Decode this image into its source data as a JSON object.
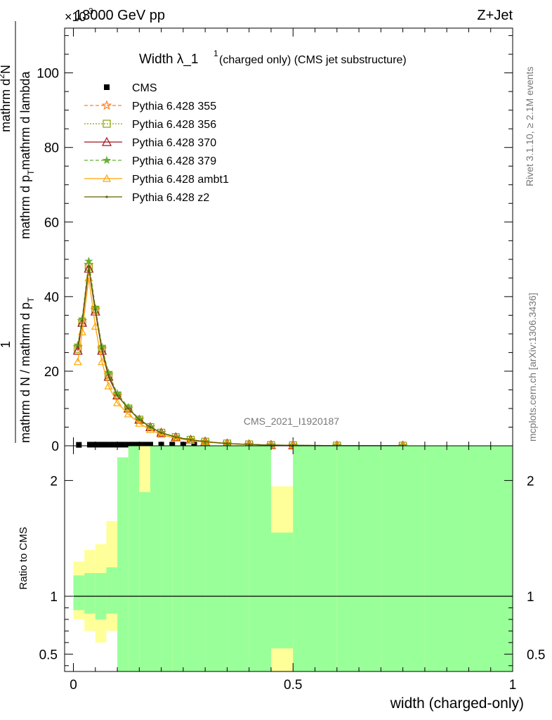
{
  "header": {
    "left": "13000 GeV pp",
    "right": "Z+Jet",
    "exponent": "×10",
    "exponent_power": "3"
  },
  "title": {
    "main": "Width λ_1",
    "sup": "1",
    "sub": "(charged only) (CMS jet substructure)"
  },
  "ylabel": "1/(mathrm d N / mathrm d p_T) mathrm d²N / (mathrm d p_T mathrm d lambda)",
  "ylabel_parts": {
    "num": "1",
    "den": "mathrm d N / mathrm d p",
    "den_sub": "T",
    "right_num": "mathrm d",
    "right_num_sup": "2",
    "right_num_end": "N",
    "right_den": "mathrm d p",
    "right_den_sub": "T",
    "right_den_end": "mathrm d lambda"
  },
  "xlabel": "width (charged-only)",
  "ratio_label": "Ratio to CMS",
  "watermark": "CMS_2021_I1920187",
  "side_texts": {
    "rivet": "Rivet 3.1.10, ≥ 2.1M events",
    "url": "mcplots.cern.ch [arXiv:1306.3436]"
  },
  "colors": {
    "cms": "#000000",
    "p355": "#ff7f27",
    "p356": "#8aa000",
    "p370": "#a01020",
    "p379": "#66b033",
    "ambt1": "#ffa500",
    "z2": "#606000",
    "band_green": "#99ff99",
    "band_yellow": "#ffff99"
  },
  "chart_data": {
    "type": "line",
    "x_label": "width (charged-only)",
    "main_ylim": [
      0,
      112
    ],
    "main_yticks": [
      0,
      20,
      40,
      60,
      80,
      100
    ],
    "main_y_multiplier": 1000,
    "ratio_ylim": [
      0.35,
      2.3
    ],
    "ratio_yticks": [
      0.5,
      1,
      2
    ],
    "xlim": [
      -0.02,
      1.0
    ],
    "xticks": [
      0,
      0.5,
      1
    ],
    "legend_position": "top-left",
    "x": [
      0.0125,
      0.0375,
      0.05,
      0.0625,
      0.075,
      0.0875,
      0.1,
      0.1125,
      0.125,
      0.1375,
      0.15,
      0.1625,
      0.175,
      0.2,
      0.225,
      0.25,
      0.275,
      0.3,
      0.35,
      0.4,
      0.45,
      0.5,
      0.6,
      0.75
    ],
    "marker_x": [
      0.0125,
      0.0375,
      0.05,
      0.0625,
      0.075,
      0.0875,
      0.1,
      0.1125,
      0.125,
      0.1375,
      0.15,
      0.1625,
      0.175,
      0.2,
      0.225,
      0.25,
      0.275,
      0.3,
      0.35,
      0.4,
      0.45,
      0.5,
      0.6,
      0.75
    ],
    "series": [
      {
        "name": "CMS",
        "style": "cms",
        "x": [
          0.0125,
          0.0375,
          0.05,
          0.0625,
          0.075,
          0.0875,
          0.1,
          0.1125,
          0.125,
          0.1375,
          0.15,
          0.1625,
          0.175,
          0.2,
          0.225,
          0.25,
          0.275,
          0.3
        ],
        "values": [
          0.25,
          0.3,
          0.3,
          0.3,
          0.3,
          0.3,
          0.3,
          0.3,
          0.3,
          0.3,
          0.3,
          0.3,
          0.3,
          0.3,
          0.3,
          0.3,
          0.3,
          0.3
        ]
      },
      {
        "name": "Pythia 6.428 355",
        "style": "p355",
        "x": [
          0.01,
          0.02,
          0.035,
          0.05,
          0.065,
          0.08,
          0.1,
          0.125,
          0.15,
          0.175,
          0.2,
          0.233,
          0.267,
          0.3,
          0.35,
          0.4,
          0.45,
          0.5,
          0.6,
          0.75
        ],
        "values": [
          26.5,
          33.5,
          48.5,
          36.5,
          26,
          19,
          13.5,
          10,
          7,
          5,
          3.5,
          2.3,
          1.6,
          1.1,
          0.6,
          0.35,
          0.2,
          0.12,
          0.05,
          0.02
        ]
      },
      {
        "name": "Pythia 6.428 356",
        "style": "p356",
        "x": [
          0.01,
          0.02,
          0.035,
          0.05,
          0.065,
          0.08,
          0.1,
          0.125,
          0.15,
          0.175,
          0.2,
          0.233,
          0.267,
          0.3,
          0.35,
          0.4,
          0.45,
          0.5,
          0.6,
          0.75
        ],
        "values": [
          26,
          33,
          48,
          36.5,
          26,
          19,
          13.5,
          10,
          7,
          5,
          3.5,
          2.3,
          1.6,
          1.1,
          0.6,
          0.35,
          0.2,
          0.12,
          0.05,
          0.02
        ]
      },
      {
        "name": "Pythia 6.428 370",
        "style": "p370",
        "x": [
          0.01,
          0.02,
          0.035,
          0.05,
          0.065,
          0.08,
          0.1,
          0.125,
          0.15,
          0.175,
          0.2,
          0.233,
          0.267,
          0.3,
          0.35,
          0.4,
          0.45,
          0.5,
          0.6,
          0.75
        ],
        "values": [
          25.5,
          33,
          47.5,
          36,
          25.5,
          18.5,
          13.5,
          10,
          7,
          5,
          3.5,
          2.3,
          1.6,
          1.1,
          0.6,
          0.35,
          0.2,
          0.12,
          0.05,
          0.02
        ]
      },
      {
        "name": "Pythia 6.428 379",
        "style": "p379",
        "x": [
          0.01,
          0.02,
          0.035,
          0.05,
          0.065,
          0.08,
          0.1,
          0.125,
          0.15,
          0.175,
          0.2,
          0.233,
          0.267,
          0.3,
          0.35,
          0.4,
          0.45,
          0.5,
          0.6,
          0.75
        ],
        "values": [
          27,
          34,
          49.5,
          37,
          26.5,
          19.5,
          14,
          10.3,
          7.2,
          5.1,
          3.6,
          2.4,
          1.65,
          1.1,
          0.6,
          0.35,
          0.2,
          0.12,
          0.05,
          0.02
        ]
      },
      {
        "name": "Pythia 6.428 ambt1",
        "style": "ambt1",
        "x": [
          0.01,
          0.02,
          0.035,
          0.05,
          0.065,
          0.08,
          0.1,
          0.125,
          0.15,
          0.175,
          0.2,
          0.233,
          0.267,
          0.3,
          0.35,
          0.4,
          0.45,
          0.5,
          0.6,
          0.75
        ],
        "values": [
          22.5,
          30.5,
          45,
          32,
          22.5,
          16,
          11.5,
          8.5,
          6,
          4.3,
          3,
          2,
          1.4,
          1,
          0.55,
          0.3,
          0.18,
          0.1,
          0.04,
          0.02
        ]
      },
      {
        "name": "Pythia 6.428 z2",
        "style": "z2",
        "x": [
          0.01,
          0.02,
          0.035,
          0.05,
          0.065,
          0.08,
          0.1,
          0.125,
          0.15,
          0.175,
          0.2,
          0.233,
          0.267,
          0.3,
          0.35,
          0.4,
          0.45,
          0.5,
          0.6,
          0.75
        ],
        "values": [
          26.5,
          33.5,
          48,
          36.5,
          26,
          19,
          13.5,
          10,
          7,
          5,
          3.5,
          2.3,
          1.6,
          1.1,
          0.6,
          0.35,
          0.2,
          0.12,
          0.05,
          0.02
        ]
      }
    ],
    "ratio_bands": {
      "edges": [
        0.0,
        0.025,
        0.05,
        0.075,
        0.1,
        0.125,
        0.15,
        0.175,
        0.2,
        0.225,
        0.25,
        0.275,
        0.3,
        0.35,
        0.4,
        0.45,
        0.5,
        0.6,
        0.7,
        0.8,
        0.9,
        1.0
      ],
      "yellow_low": [
        0.8,
        0.7,
        0.6,
        0.7,
        0.35,
        0.35,
        0.35,
        0.35,
        0.35,
        0.35,
        0.35,
        0.35,
        0.35,
        0.35,
        0.35,
        0.35,
        0.35,
        0.35,
        0.35,
        0.35,
        0.35
      ],
      "yellow_high": [
        1.3,
        1.4,
        1.45,
        1.65,
        1.85,
        2.3,
        2.3,
        2.3,
        2.3,
        2.3,
        2.3,
        2.3,
        2.3,
        2.2,
        2.3,
        1.95,
        2.3,
        2.3,
        2.3,
        2.3,
        2.3
      ],
      "green_low": [
        0.88,
        0.85,
        0.8,
        0.85,
        0.35,
        0.35,
        0.35,
        0.35,
        0.35,
        0.35,
        0.35,
        0.35,
        0.35,
        0.35,
        0.35,
        0.55,
        0.35,
        0.35,
        0.35,
        0.35,
        0.35
      ],
      "green_high": [
        1.18,
        1.2,
        1.2,
        1.25,
        2.2,
        2.3,
        1.9,
        2.3,
        2.3,
        2.3,
        2.3,
        2.3,
        2.3,
        2.3,
        2.3,
        1.55,
        2.3,
        2.3,
        2.3,
        2.3,
        2.3
      ]
    }
  }
}
